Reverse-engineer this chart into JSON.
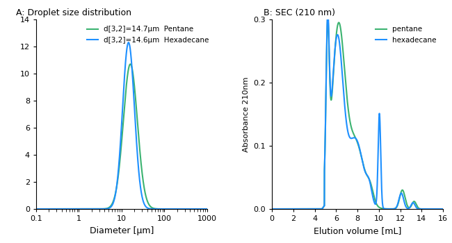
{
  "title_A": "A: Droplet size distribution",
  "title_B": "B: SEC (210 nm)",
  "xlabel_A": "Diameter [μm]",
  "ylabel_A": "",
  "xlabel_B": "Elution volume [mL]",
  "ylabel_B": "Absorbance 210nm",
  "color_pentane": "#3cb371",
  "color_hexadecane": "#1e90ff",
  "legend_A": [
    "d[3,2]=14.7μm",
    "Pentane",
    "d[3,2]=14.6μm",
    "Hexadecane"
  ],
  "legend_B_pentane": "pentane",
  "legend_B_hexadecane": "hexadecane",
  "ylim_A": [
    0,
    14
  ],
  "ylim_B": [
    0.0,
    0.3
  ],
  "xlim_A_log": [
    0.1,
    1000
  ],
  "xlim_B": [
    0,
    16
  ]
}
